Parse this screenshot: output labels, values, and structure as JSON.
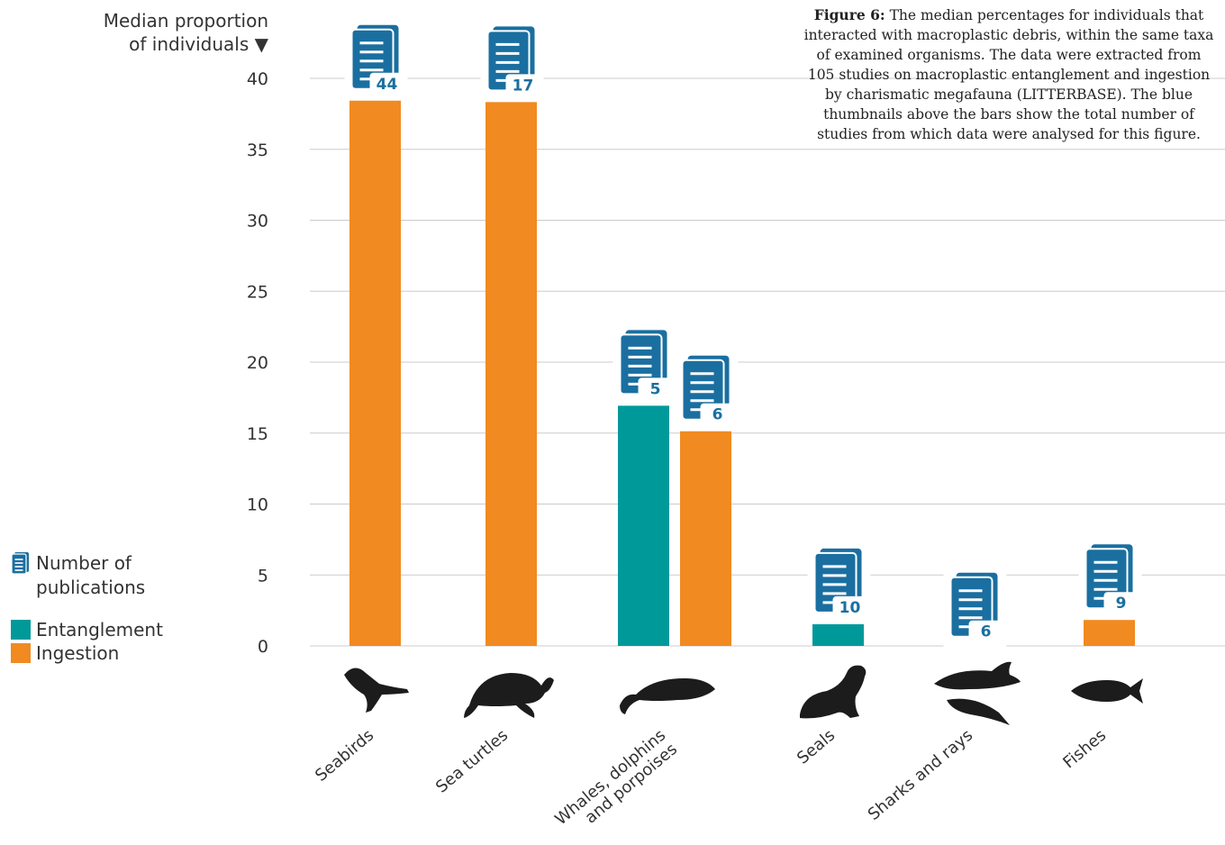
{
  "chart_data": {
    "type": "bar",
    "ylabel": "Median proportion of individuals ▼",
    "ylabel_lines": [
      "Median proportion",
      "of individuals ▼"
    ],
    "ylim": [
      0,
      40
    ],
    "yticks": [
      0,
      5,
      10,
      15,
      20,
      25,
      30,
      35,
      40
    ],
    "grid": true,
    "categories": [
      "Seabirds",
      "Sea turtles",
      "Whales, dolphins and porpoises",
      "Seals",
      "Sharks and rays",
      "Fishes"
    ],
    "category_label_lines": [
      [
        "Seabirds"
      ],
      [
        "Sea turtles"
      ],
      [
        "Whales, dolphins",
        "and porpoises"
      ],
      [
        "Seals"
      ],
      [
        "Sharks and rays"
      ],
      [
        "Fishes"
      ]
    ],
    "category_icons": [
      "pelican-icon",
      "sea-turtle-icon",
      "whale-icon",
      "seal-icon",
      "shark-icon",
      "fish-icon"
    ],
    "bars": [
      {
        "category": "Seabirds",
        "series": "Ingestion",
        "value": 39,
        "publications": 44
      },
      {
        "category": "Sea turtles",
        "series": "Ingestion",
        "value": 38.9,
        "publications": 17
      },
      {
        "category": "Whales, dolphins and porpoises",
        "series": "Entanglement",
        "value": 17.5,
        "publications": 5
      },
      {
        "category": "Whales, dolphins and porpoises",
        "series": "Ingestion",
        "value": 15.7,
        "publications": 6
      },
      {
        "category": "Seals",
        "series": "Entanglement",
        "value": 2.1,
        "publications": 10
      },
      {
        "category": "Sharks and rays",
        "series": "Ingestion",
        "value": 0.4,
        "publications": 6
      },
      {
        "category": "Fishes",
        "series": "Ingestion",
        "value": 2.4,
        "publications": 9
      }
    ],
    "series": [
      {
        "name": "Entanglement",
        "color": "#00999a"
      },
      {
        "name": "Ingestion",
        "color": "#f18a21"
      }
    ],
    "legend": {
      "position": "left",
      "publications_label": "Number of publications",
      "publications_lines": [
        "Number of",
        "publications"
      ]
    }
  },
  "caption": {
    "bold": "Figure 6:",
    "lines": [
      " The median percentages for individuals that",
      "interacted with macroplastic debris, within the same taxa",
      "of examined organisms. The data were extracted from",
      "105 studies on macroplastic entanglement and ingestion",
      "by charismatic megafauna (LITTERBASE). The blue",
      "thumbnails above the bars show the total number of",
      "studies from which data were analysed for this figure."
    ]
  },
  "colors": {
    "publication_icon": "#1a6fa0",
    "grid": "#cccccc",
    "silhouette": "#1c1c1c"
  }
}
